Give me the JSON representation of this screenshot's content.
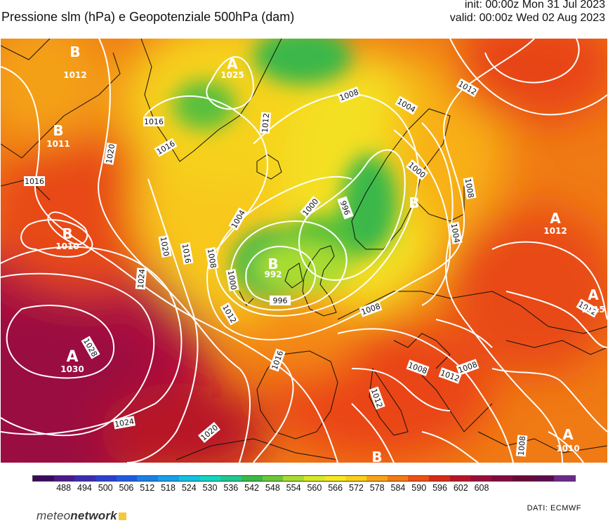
{
  "header": {
    "title": "Pressione slm (hPa) e Geopotenziale 500hPa (dam)",
    "init": "init: 00:00z Mon 31 Jul 2023",
    "valid": "valid: 00:00z Wed 02 Aug 2023"
  },
  "map": {
    "isobars": [
      {
        "label": "1016"
      },
      {
        "label": "1016"
      },
      {
        "label": "1016"
      },
      {
        "label": "1020"
      },
      {
        "label": "1020"
      },
      {
        "label": "1020"
      },
      {
        "label": "1024"
      },
      {
        "label": "1024"
      },
      {
        "label": "1028"
      },
      {
        "label": "1016"
      },
      {
        "label": "1012"
      },
      {
        "label": "1012"
      },
      {
        "label": "1012"
      },
      {
        "label": "1008"
      },
      {
        "label": "1008"
      },
      {
        "label": "1004"
      },
      {
        "label": "1004"
      },
      {
        "label": "1000"
      },
      {
        "label": "1000"
      },
      {
        "label": "996"
      },
      {
        "label": "996"
      },
      {
        "label": "1000"
      },
      {
        "label": "1008"
      },
      {
        "label": "1004"
      },
      {
        "label": "1008"
      },
      {
        "label": "1008"
      },
      {
        "label": "1008"
      },
      {
        "label": "1012"
      },
      {
        "label": "1008"
      },
      {
        "label": "1016"
      },
      {
        "label": "1012"
      },
      {
        "label": "1012"
      }
    ],
    "centres": [
      {
        "letter": "B",
        "value": "1012"
      },
      {
        "letter": "A",
        "value": "1025"
      },
      {
        "letter": "B",
        "value": "1011"
      },
      {
        "letter": "B",
        "value": "1010"
      },
      {
        "letter": "A",
        "value": "1030"
      },
      {
        "letter": "B",
        "value": "992"
      },
      {
        "letter": "B",
        "value": ""
      },
      {
        "letter": "A",
        "value": "1012"
      },
      {
        "letter": "A",
        "value": "1015"
      },
      {
        "letter": "A",
        "value": "1010"
      },
      {
        "letter": "B",
        "value": ""
      }
    ]
  },
  "colorbar": {
    "labels": [
      "488",
      "494",
      "500",
      "506",
      "512",
      "518",
      "524",
      "530",
      "536",
      "542",
      "548",
      "554",
      "560",
      "566",
      "572",
      "578",
      "584",
      "590",
      "596",
      "602",
      "608"
    ],
    "colors": [
      "#3a0a5e",
      "#4a1a8a",
      "#3b2bb0",
      "#2a3fd0",
      "#1f5be0",
      "#1a7fe6",
      "#18a0e8",
      "#14c0e0",
      "#14d4c0",
      "#20c890",
      "#3ab848",
      "#6ac838",
      "#a8dc30",
      "#d8e828",
      "#f6e820",
      "#f8cf1a",
      "#f8a418",
      "#f47a14",
      "#ec5012",
      "#d82a14",
      "#b81426",
      "#9a0c3a",
      "#82093e",
      "#6a0838",
      "#5a0c4a",
      "#6a2a8a"
    ]
  },
  "footer": {
    "brand_light": "meteo",
    "brand_bold": "network",
    "source": "DATI:  ECMWF"
  }
}
